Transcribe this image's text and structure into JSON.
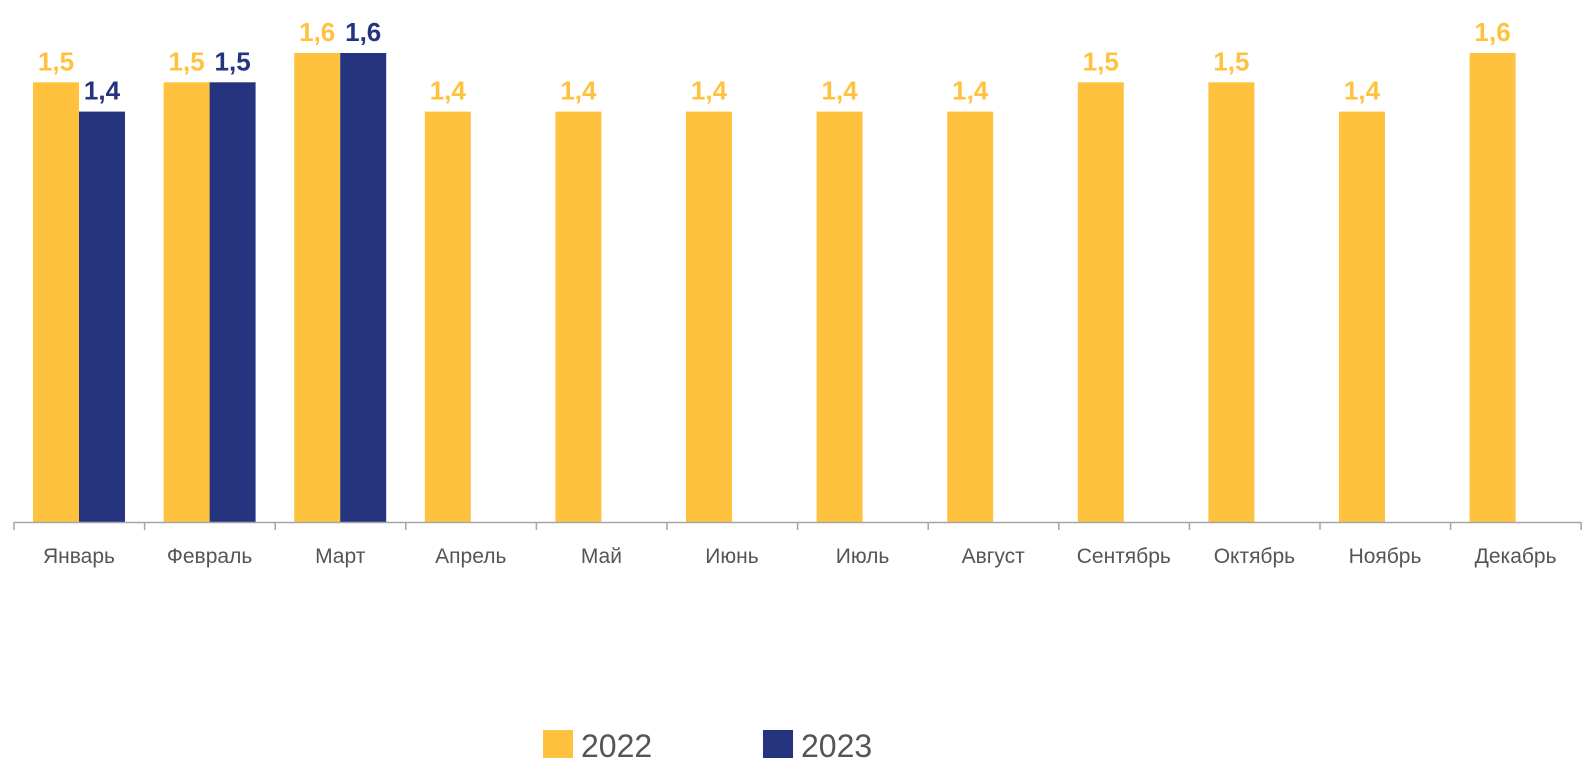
{
  "chart_data": {
    "type": "bar",
    "title": "",
    "xlabel": "",
    "ylabel": "",
    "ylim": [
      0,
      1.6
    ],
    "grid": false,
    "legend_position": "bottom",
    "categories": [
      "Январь",
      "Февраль",
      "Март",
      "Апрель",
      "Май",
      "Июнь",
      "Июль",
      "Август",
      "Сентябрь",
      "Октябрь",
      "Ноябрь",
      "Декабрь"
    ],
    "series": [
      {
        "name": "2022",
        "color": "#FFC23F",
        "values": [
          1.5,
          1.5,
          1.6,
          1.4,
          1.4,
          1.4,
          1.4,
          1.4,
          1.5,
          1.5,
          1.4,
          1.6
        ],
        "labels": [
          "1,5",
          "1,5",
          "1,6",
          "1,4",
          "1,4",
          "1,4",
          "1,4",
          "1,4",
          "1,5",
          "1,5",
          "1,4",
          "1,6"
        ]
      },
      {
        "name": "2023",
        "color": "#263480",
        "values": [
          1.4,
          1.5,
          1.6,
          null,
          null,
          null,
          null,
          null,
          null,
          null,
          null,
          null
        ],
        "labels": [
          "1,4",
          "1,5",
          "1,6",
          null,
          null,
          null,
          null,
          null,
          null,
          null,
          null,
          null
        ]
      }
    ]
  }
}
